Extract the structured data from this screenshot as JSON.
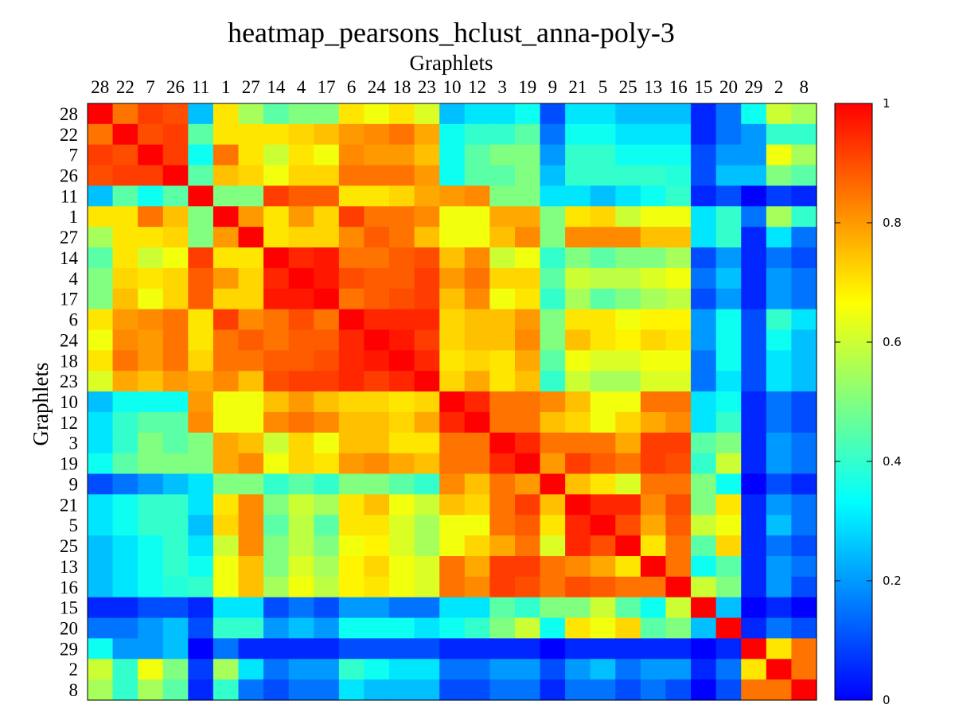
{
  "chart_data": {
    "type": "heatmap",
    "title": "heatmap_pearsons_hclust_anna-poly-3",
    "xlabel": "Graphlets",
    "ylabel": "Graphlets",
    "labels": [
      "28",
      "22",
      "7",
      "26",
      "11",
      "1",
      "27",
      "14",
      "4",
      "17",
      "6",
      "24",
      "18",
      "23",
      "10",
      "12",
      "3",
      "19",
      "9",
      "21",
      "5",
      "25",
      "13",
      "16",
      "15",
      "20",
      "29",
      "2",
      "8"
    ],
    "colorbar": {
      "min": 0,
      "max": 1,
      "ticks": [
        "0",
        "0.2",
        "0.4",
        "0.6",
        "0.8",
        "1"
      ]
    },
    "colormap": [
      "#0000ff",
      "#0080ff",
      "#00ffff",
      "#80ff80",
      "#ffff00",
      "#ff8000",
      "#ff0000"
    ],
    "values": [
      [
        1.0,
        0.85,
        0.92,
        0.9,
        0.25,
        0.7,
        0.55,
        0.45,
        0.5,
        0.5,
        0.7,
        0.65,
        0.7,
        0.62,
        0.25,
        0.3,
        0.3,
        0.35,
        0.1,
        0.3,
        0.3,
        0.25,
        0.25,
        0.25,
        0.05,
        0.15,
        0.35,
        0.6,
        0.55
      ],
      [
        0.85,
        1.0,
        0.9,
        0.92,
        0.45,
        0.7,
        0.7,
        0.7,
        0.72,
        0.75,
        0.8,
        0.82,
        0.85,
        0.78,
        0.35,
        0.4,
        0.4,
        0.45,
        0.15,
        0.35,
        0.35,
        0.3,
        0.3,
        0.3,
        0.05,
        0.15,
        0.2,
        0.4,
        0.4
      ],
      [
        0.92,
        0.9,
        1.0,
        0.92,
        0.35,
        0.85,
        0.7,
        0.6,
        0.7,
        0.65,
        0.82,
        0.8,
        0.8,
        0.75,
        0.35,
        0.45,
        0.5,
        0.5,
        0.2,
        0.4,
        0.4,
        0.35,
        0.35,
        0.35,
        0.1,
        0.2,
        0.2,
        0.65,
        0.55
      ],
      [
        0.9,
        0.92,
        0.92,
        1.0,
        0.45,
        0.75,
        0.72,
        0.65,
        0.72,
        0.72,
        0.85,
        0.85,
        0.85,
        0.8,
        0.35,
        0.45,
        0.45,
        0.5,
        0.25,
        0.4,
        0.4,
        0.4,
        0.4,
        0.38,
        0.1,
        0.25,
        0.25,
        0.5,
        0.45
      ],
      [
        0.25,
        0.45,
        0.35,
        0.45,
        1.0,
        0.5,
        0.5,
        0.92,
        0.88,
        0.88,
        0.7,
        0.7,
        0.72,
        0.78,
        0.8,
        0.82,
        0.5,
        0.5,
        0.3,
        0.3,
        0.25,
        0.3,
        0.35,
        0.4,
        0.05,
        0.1,
        0.0,
        0.08,
        0.05
      ],
      [
        0.7,
        0.7,
        0.85,
        0.75,
        0.5,
        1.0,
        0.8,
        0.7,
        0.8,
        0.72,
        0.92,
        0.85,
        0.85,
        0.82,
        0.65,
        0.65,
        0.78,
        0.78,
        0.5,
        0.7,
        0.72,
        0.6,
        0.65,
        0.65,
        0.3,
        0.4,
        0.15,
        0.55,
        0.4
      ],
      [
        0.55,
        0.7,
        0.7,
        0.72,
        0.5,
        0.8,
        1.0,
        0.7,
        0.72,
        0.72,
        0.82,
        0.88,
        0.85,
        0.75,
        0.65,
        0.65,
        0.75,
        0.82,
        0.5,
        0.82,
        0.82,
        0.82,
        0.75,
        0.75,
        0.3,
        0.4,
        0.05,
        0.3,
        0.15
      ],
      [
        0.45,
        0.7,
        0.6,
        0.65,
        0.92,
        0.7,
        0.7,
        1.0,
        0.95,
        0.97,
        0.85,
        0.85,
        0.88,
        0.9,
        0.75,
        0.82,
        0.6,
        0.65,
        0.4,
        0.5,
        0.45,
        0.5,
        0.5,
        0.55,
        0.1,
        0.2,
        0.05,
        0.15,
        0.1
      ],
      [
        0.5,
        0.72,
        0.7,
        0.72,
        0.88,
        0.8,
        0.72,
        0.95,
        1.0,
        0.97,
        0.9,
        0.88,
        0.88,
        0.92,
        0.8,
        0.85,
        0.72,
        0.72,
        0.45,
        0.6,
        0.58,
        0.58,
        0.62,
        0.65,
        0.15,
        0.25,
        0.05,
        0.2,
        0.15
      ],
      [
        0.5,
        0.75,
        0.65,
        0.72,
        0.88,
        0.72,
        0.72,
        0.97,
        0.97,
        1.0,
        0.85,
        0.88,
        0.9,
        0.92,
        0.75,
        0.82,
        0.65,
        0.7,
        0.4,
        0.55,
        0.45,
        0.5,
        0.55,
        0.58,
        0.1,
        0.2,
        0.05,
        0.2,
        0.15
      ],
      [
        0.7,
        0.8,
        0.82,
        0.85,
        0.7,
        0.92,
        0.82,
        0.85,
        0.9,
        0.85,
        1.0,
        0.95,
        0.95,
        0.95,
        0.72,
        0.75,
        0.75,
        0.8,
        0.5,
        0.7,
        0.7,
        0.65,
        0.68,
        0.68,
        0.2,
        0.35,
        0.1,
        0.4,
        0.3
      ],
      [
        0.65,
        0.82,
        0.8,
        0.85,
        0.7,
        0.85,
        0.88,
        0.85,
        0.88,
        0.88,
        0.95,
        1.0,
        0.97,
        0.92,
        0.72,
        0.75,
        0.75,
        0.82,
        0.5,
        0.75,
        0.7,
        0.68,
        0.72,
        0.7,
        0.2,
        0.35,
        0.1,
        0.35,
        0.25
      ],
      [
        0.7,
        0.85,
        0.8,
        0.85,
        0.72,
        0.85,
        0.85,
        0.88,
        0.88,
        0.9,
        0.95,
        0.97,
        1.0,
        0.95,
        0.7,
        0.72,
        0.7,
        0.78,
        0.45,
        0.65,
        0.62,
        0.62,
        0.65,
        0.65,
        0.15,
        0.35,
        0.1,
        0.3,
        0.25
      ],
      [
        0.62,
        0.78,
        0.75,
        0.8,
        0.78,
        0.82,
        0.75,
        0.9,
        0.92,
        0.92,
        0.95,
        0.92,
        0.95,
        1.0,
        0.72,
        0.78,
        0.7,
        0.75,
        0.4,
        0.6,
        0.55,
        0.55,
        0.62,
        0.62,
        0.15,
        0.3,
        0.1,
        0.3,
        0.25
      ],
      [
        0.25,
        0.35,
        0.35,
        0.35,
        0.8,
        0.65,
        0.65,
        0.75,
        0.8,
        0.75,
        0.72,
        0.72,
        0.7,
        0.72,
        1.0,
        0.95,
        0.85,
        0.85,
        0.82,
        0.75,
        0.65,
        0.65,
        0.85,
        0.85,
        0.3,
        0.35,
        0.05,
        0.15,
        0.1
      ],
      [
        0.3,
        0.4,
        0.45,
        0.45,
        0.82,
        0.65,
        0.65,
        0.82,
        0.85,
        0.82,
        0.75,
        0.75,
        0.72,
        0.78,
        0.95,
        1.0,
        0.85,
        0.85,
        0.75,
        0.72,
        0.65,
        0.72,
        0.78,
        0.82,
        0.3,
        0.4,
        0.05,
        0.15,
        0.1
      ],
      [
        0.3,
        0.4,
        0.5,
        0.45,
        0.5,
        0.78,
        0.75,
        0.6,
        0.72,
        0.65,
        0.75,
        0.75,
        0.7,
        0.7,
        0.85,
        0.85,
        1.0,
        0.95,
        0.85,
        0.85,
        0.85,
        0.78,
        0.92,
        0.92,
        0.45,
        0.5,
        0.05,
        0.2,
        0.15
      ],
      [
        0.35,
        0.45,
        0.5,
        0.5,
        0.5,
        0.78,
        0.82,
        0.65,
        0.72,
        0.7,
        0.8,
        0.82,
        0.78,
        0.75,
        0.85,
        0.85,
        0.95,
        1.0,
        0.8,
        0.92,
        0.88,
        0.85,
        0.92,
        0.9,
        0.4,
        0.6,
        0.05,
        0.2,
        0.15
      ],
      [
        0.1,
        0.15,
        0.2,
        0.25,
        0.3,
        0.5,
        0.5,
        0.4,
        0.45,
        0.4,
        0.5,
        0.5,
        0.45,
        0.4,
        0.82,
        0.75,
        0.85,
        0.8,
        1.0,
        0.75,
        0.7,
        0.62,
        0.85,
        0.85,
        0.5,
        0.35,
        0.0,
        0.1,
        0.05
      ],
      [
        0.3,
        0.35,
        0.4,
        0.4,
        0.3,
        0.7,
        0.82,
        0.5,
        0.6,
        0.55,
        0.7,
        0.75,
        0.65,
        0.6,
        0.75,
        0.72,
        0.85,
        0.92,
        0.75,
        1.0,
        0.95,
        0.95,
        0.82,
        0.9,
        0.5,
        0.7,
        0.05,
        0.2,
        0.15
      ],
      [
        0.3,
        0.35,
        0.4,
        0.4,
        0.25,
        0.72,
        0.82,
        0.45,
        0.58,
        0.45,
        0.7,
        0.7,
        0.62,
        0.55,
        0.65,
        0.65,
        0.85,
        0.88,
        0.7,
        0.95,
        1.0,
        0.9,
        0.78,
        0.88,
        0.6,
        0.65,
        0.05,
        0.25,
        0.15
      ],
      [
        0.25,
        0.3,
        0.35,
        0.4,
        0.3,
        0.6,
        0.82,
        0.5,
        0.58,
        0.5,
        0.65,
        0.68,
        0.62,
        0.55,
        0.65,
        0.72,
        0.78,
        0.85,
        0.62,
        0.95,
        0.9,
        1.0,
        0.7,
        0.85,
        0.45,
        0.72,
        0.05,
        0.15,
        0.1
      ],
      [
        0.25,
        0.3,
        0.35,
        0.4,
        0.35,
        0.65,
        0.75,
        0.5,
        0.62,
        0.55,
        0.68,
        0.72,
        0.65,
        0.62,
        0.85,
        0.78,
        0.92,
        0.92,
        0.85,
        0.82,
        0.78,
        0.7,
        1.0,
        0.85,
        0.35,
        0.45,
        0.05,
        0.2,
        0.15
      ],
      [
        0.25,
        0.3,
        0.35,
        0.38,
        0.4,
        0.65,
        0.75,
        0.55,
        0.65,
        0.58,
        0.68,
        0.7,
        0.65,
        0.62,
        0.85,
        0.82,
        0.92,
        0.9,
        0.85,
        0.9,
        0.88,
        0.85,
        0.85,
        1.0,
        0.6,
        0.5,
        0.05,
        0.2,
        0.1
      ],
      [
        0.05,
        0.05,
        0.1,
        0.1,
        0.05,
        0.3,
        0.3,
        0.1,
        0.15,
        0.1,
        0.2,
        0.2,
        0.15,
        0.15,
        0.3,
        0.3,
        0.45,
        0.4,
        0.5,
        0.5,
        0.6,
        0.45,
        0.35,
        0.6,
        1.0,
        0.25,
        0.0,
        0.05,
        0.0
      ],
      [
        0.15,
        0.15,
        0.2,
        0.25,
        0.1,
        0.4,
        0.4,
        0.2,
        0.25,
        0.2,
        0.35,
        0.35,
        0.35,
        0.3,
        0.35,
        0.4,
        0.5,
        0.6,
        0.35,
        0.7,
        0.65,
        0.72,
        0.45,
        0.5,
        0.25,
        1.0,
        0.05,
        0.15,
        0.1
      ],
      [
        0.35,
        0.2,
        0.2,
        0.25,
        0.0,
        0.15,
        0.05,
        0.05,
        0.05,
        0.05,
        0.1,
        0.1,
        0.1,
        0.1,
        0.05,
        0.05,
        0.05,
        0.05,
        0.0,
        0.05,
        0.05,
        0.05,
        0.05,
        0.05,
        0.0,
        0.05,
        1.0,
        0.7,
        0.85
      ],
      [
        0.6,
        0.4,
        0.65,
        0.5,
        0.08,
        0.55,
        0.3,
        0.15,
        0.2,
        0.2,
        0.4,
        0.35,
        0.3,
        0.3,
        0.15,
        0.15,
        0.2,
        0.2,
        0.1,
        0.2,
        0.25,
        0.15,
        0.2,
        0.2,
        0.05,
        0.15,
        0.7,
        1.0,
        0.85
      ],
      [
        0.55,
        0.4,
        0.55,
        0.45,
        0.05,
        0.4,
        0.15,
        0.1,
        0.15,
        0.15,
        0.3,
        0.25,
        0.25,
        0.25,
        0.1,
        0.1,
        0.15,
        0.15,
        0.05,
        0.15,
        0.15,
        0.1,
        0.15,
        0.1,
        0.0,
        0.1,
        0.85,
        0.85,
        1.0
      ]
    ]
  }
}
